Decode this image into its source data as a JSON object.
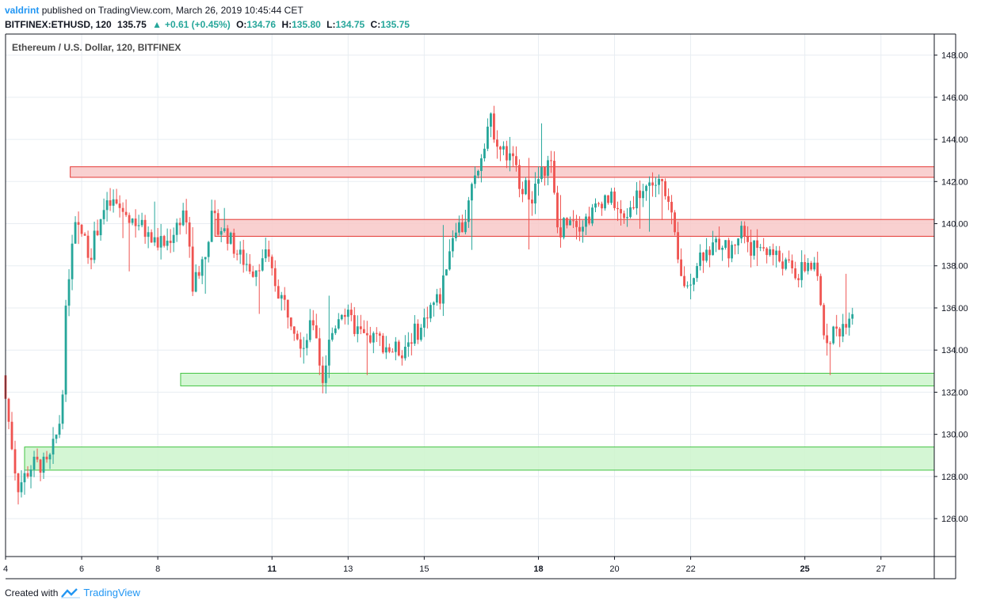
{
  "header": {
    "author": "valdrint",
    "published": "published on TradingView.com, March 26, 2019 10:45:44 CET",
    "symbol": "BITFINEX:ETHUSD, 120",
    "last": "135.75",
    "change": "+0.61 (+0.45%)",
    "open_label": "O:",
    "open": "134.76",
    "high_label": "H:",
    "high": "135.80",
    "low_label": "L:",
    "low": "134.75",
    "close_label": "C:",
    "close": "135.75"
  },
  "footer": {
    "created_with": "Created with",
    "brand": "TradingView"
  },
  "colors": {
    "up": "#26a69a",
    "down": "#ef5350",
    "resistance_fill": "#f8c8c8",
    "resistance_stroke": "#e53935",
    "support_fill": "#ccf5cc",
    "support_stroke": "#43c443",
    "grid": "#e8edf2",
    "axis": "#131722"
  },
  "chart_data": {
    "type": "candlestick",
    "title": "Ethereum / U.S. Dollar, 120, BITFINEX",
    "ylim": [
      124.2,
      149.0
    ],
    "y_ticks": [
      126,
      128,
      130,
      132,
      134,
      136,
      138,
      140,
      142,
      144,
      146,
      148
    ],
    "y_tick_labels": [
      "126.00",
      "128.00",
      "130.00",
      "132.00",
      "134.00",
      "136.00",
      "138.00",
      "140.00",
      "142.00",
      "144.00",
      "146.00",
      "148.00"
    ],
    "xlim_days": [
      4,
      28.4
    ],
    "x_ticks": [
      {
        "day": 4,
        "label": "4",
        "bold": false
      },
      {
        "day": 6,
        "label": "6",
        "bold": false
      },
      {
        "day": 8,
        "label": "8",
        "bold": false
      },
      {
        "day": 11,
        "label": "11",
        "bold": true
      },
      {
        "day": 13,
        "label": "13",
        "bold": false
      },
      {
        "day": 15,
        "label": "15",
        "bold": false
      },
      {
        "day": 18,
        "label": "18",
        "bold": true
      },
      {
        "day": 20,
        "label": "20",
        "bold": false
      },
      {
        "day": 22,
        "label": "22",
        "bold": false
      },
      {
        "day": 25,
        "label": "25",
        "bold": true
      },
      {
        "day": 27,
        "label": "27",
        "bold": false
      }
    ],
    "zones": [
      {
        "name": "resistance-zone-upper",
        "kind": "resistance",
        "x_start_day": 5.7,
        "y_low": 142.2,
        "y_high": 142.7
      },
      {
        "name": "resistance-zone-lower",
        "kind": "resistance",
        "x_start_day": 9.5,
        "y_low": 139.4,
        "y_high": 140.2
      },
      {
        "name": "support-zone-upper",
        "kind": "support",
        "x_start_day": 8.6,
        "y_low": 132.3,
        "y_high": 132.9
      },
      {
        "name": "support-zone-lower",
        "kind": "support",
        "x_start_day": 4.5,
        "y_low": 128.3,
        "y_high": 129.4
      }
    ],
    "price_path_anchors": [
      [
        4.0,
        132.8
      ],
      [
        4.4,
        127.5
      ],
      [
        4.8,
        128.6
      ],
      [
        5.2,
        128.5
      ],
      [
        5.4,
        129.8
      ],
      [
        5.55,
        131.0
      ],
      [
        5.7,
        137.0
      ],
      [
        5.9,
        139.8
      ],
      [
        6.1,
        139.5
      ],
      [
        6.3,
        138.5
      ],
      [
        6.6,
        140.5
      ],
      [
        6.9,
        141.0
      ],
      [
        7.2,
        140.5
      ],
      [
        7.6,
        140.0
      ],
      [
        7.9,
        139.2
      ],
      [
        8.3,
        139.0
      ],
      [
        8.6,
        140.0
      ],
      [
        8.8,
        140.8
      ],
      [
        9.0,
        137.0
      ],
      [
        9.3,
        138.5
      ],
      [
        9.5,
        140.2
      ],
      [
        9.9,
        139.5
      ],
      [
        10.2,
        138.5
      ],
      [
        10.6,
        137.8
      ],
      [
        10.9,
        138.6
      ],
      [
        11.2,
        137.0
      ],
      [
        11.6,
        135.5
      ],
      [
        11.9,
        134.2
      ],
      [
        12.2,
        135.5
      ],
      [
        12.4,
        132.4
      ],
      [
        12.6,
        134.5
      ],
      [
        12.9,
        136.0
      ],
      [
        13.2,
        135.2
      ],
      [
        13.5,
        134.6
      ],
      [
        13.9,
        134.5
      ],
      [
        14.2,
        134.0
      ],
      [
        14.5,
        134.0
      ],
      [
        14.8,
        134.8
      ],
      [
        15.0,
        135.0
      ],
      [
        15.2,
        136.0
      ],
      [
        15.5,
        136.5
      ],
      [
        15.7,
        138.5
      ],
      [
        15.9,
        140.0
      ],
      [
        16.1,
        139.8
      ],
      [
        16.4,
        142.0
      ],
      [
        16.6,
        143.5
      ],
      [
        16.8,
        145.0
      ],
      [
        17.1,
        143.5
      ],
      [
        17.4,
        143.0
      ],
      [
        17.6,
        142.0
      ],
      [
        17.9,
        141.3
      ],
      [
        18.2,
        142.5
      ],
      [
        18.4,
        143.0
      ],
      [
        18.6,
        139.5
      ],
      [
        18.9,
        140.5
      ],
      [
        19.2,
        140.0
      ],
      [
        19.5,
        140.5
      ],
      [
        19.8,
        141.3
      ],
      [
        20.1,
        141.0
      ],
      [
        20.3,
        140.0
      ],
      [
        20.6,
        141.2
      ],
      [
        20.9,
        141.8
      ],
      [
        21.1,
        141.9
      ],
      [
        21.4,
        141.8
      ],
      [
        21.6,
        140.0
      ],
      [
        21.8,
        137.5
      ],
      [
        22.0,
        137.0
      ],
      [
        22.3,
        138.5
      ],
      [
        22.6,
        138.8
      ],
      [
        22.9,
        139.2
      ],
      [
        23.1,
        138.5
      ],
      [
        23.4,
        139.8
      ],
      [
        23.7,
        138.8
      ],
      [
        24.0,
        138.9
      ],
      [
        24.3,
        138.5
      ],
      [
        24.6,
        138.0
      ],
      [
        24.9,
        137.5
      ],
      [
        25.2,
        138.2
      ],
      [
        25.4,
        137.5
      ],
      [
        25.6,
        134.6
      ],
      [
        25.8,
        134.8
      ],
      [
        26.0,
        135.0
      ],
      [
        26.25,
        135.75
      ]
    ],
    "grid": true
  }
}
